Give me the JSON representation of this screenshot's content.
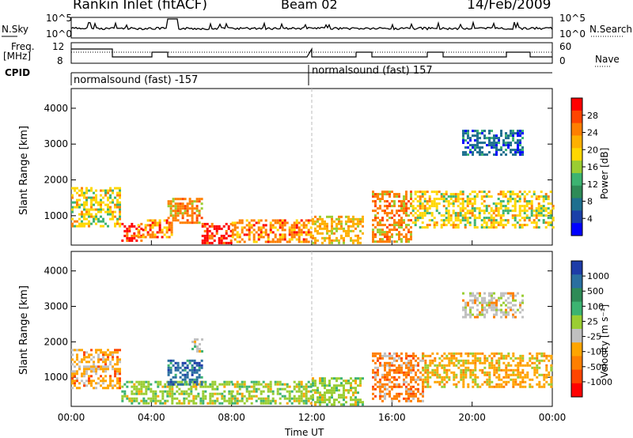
{
  "header": {
    "station": "Rankin Inlet (fitACF)",
    "beam": "Beam 02",
    "date": "14/Feb/2009"
  },
  "left_labels": {
    "nsky": "N.Sky",
    "freq": "Freq.",
    "mhz": "[MHz]",
    "cpid": "CPID"
  },
  "right_labels": {
    "nsearch": "N.Search",
    "nave": "Nave"
  },
  "top_ticks": {
    "noise_left": [
      "10^5",
      "10^0"
    ],
    "noise_right": [
      "10^5",
      "10^0"
    ],
    "freq_left": [
      "12",
      "8"
    ],
    "nave_right": [
      "60",
      "0"
    ]
  },
  "cpid": {
    "left": "normalsound (fast) -157",
    "right": "normalsound (fast) 157"
  },
  "axes": {
    "ylabel": "Slant Range [km]",
    "xlabel": "Time UT",
    "xticks": [
      "00:00",
      "04:00",
      "08:00",
      "12:00",
      "16:00",
      "20:00",
      "00:00"
    ],
    "yticks": [
      "1000",
      "2000",
      "3000",
      "4000"
    ]
  },
  "colorbars": {
    "power": {
      "label": "Power [dB]",
      "ticks": [
        "28",
        "24",
        "20",
        "16",
        "12",
        "8",
        "4"
      ],
      "colors": [
        "#ff0000",
        "#ff4500",
        "#ff7f00",
        "#ffb000",
        "#ffd700",
        "#9acd32",
        "#3cb371",
        "#2e8b57",
        "#1e6f8f",
        "#1a3fa8",
        "#0000ff"
      ]
    },
    "velocity": {
      "label": "Velocity [m s⁻¹]",
      "ticks": [
        "1000",
        "500",
        "100",
        "25",
        "-25",
        "-100",
        "-500",
        "-1000"
      ],
      "colors": [
        "#1e3ca8",
        "#2a6fa0",
        "#2e8b57",
        "#3cb371",
        "#9acd32",
        "#c0c0c0",
        "#ffa500",
        "#ff7f00",
        "#ff4500",
        "#ff0000"
      ]
    }
  },
  "chart_data": [
    {
      "type": "heatmap",
      "title": "Power [dB]",
      "xlabel": "Time UT",
      "ylabel": "Slant Range [km]",
      "xlim": [
        "00:00",
        "24:00"
      ],
      "ylim": [
        180,
        4550
      ],
      "value_range": [
        0,
        30
      ],
      "blobs": [
        {
          "t": [
            0.0,
            2.4
          ],
          "r": [
            700,
            1800
          ],
          "value": 18
        },
        {
          "t": [
            2.5,
            3.5
          ],
          "r": [
            300,
            800
          ],
          "value": 28
        },
        {
          "t": [
            3.3,
            5.0
          ],
          "r": [
            400,
            900
          ],
          "value": 24
        },
        {
          "t": [
            4.8,
            6.5
          ],
          "r": [
            800,
            1500
          ],
          "value": 22
        },
        {
          "t": [
            6.5,
            8.0
          ],
          "r": [
            250,
            800
          ],
          "value": 28
        },
        {
          "t": [
            8.0,
            12.0
          ],
          "r": [
            250,
            900
          ],
          "value": 24
        },
        {
          "t": [
            12.0,
            14.5
          ],
          "r": [
            250,
            1000
          ],
          "value": 20
        },
        {
          "t": [
            15.0,
            17.0
          ],
          "r": [
            300,
            1700
          ],
          "value": 22
        },
        {
          "t": [
            17.0,
            24.0
          ],
          "r": [
            700,
            1700
          ],
          "value": 18
        },
        {
          "t": [
            19.5,
            22.5
          ],
          "r": [
            2700,
            3400
          ],
          "value": 8
        }
      ]
    },
    {
      "type": "heatmap",
      "title": "Velocity [m s⁻¹]",
      "xlabel": "Time UT",
      "ylabel": "Slant Range [km]",
      "xlim": [
        "00:00",
        "24:00"
      ],
      "ylim": [
        180,
        4550
      ],
      "value_range": [
        -1000,
        1000
      ],
      "blobs": [
        {
          "t": [
            0.0,
            2.4
          ],
          "r": [
            700,
            1800
          ],
          "value": -300
        },
        {
          "t": [
            2.5,
            8.0
          ],
          "r": [
            250,
            900
          ],
          "value": 100
        },
        {
          "t": [
            4.8,
            6.5
          ],
          "r": [
            800,
            1500
          ],
          "value": 700
        },
        {
          "t": [
            6.0,
            6.5
          ],
          "r": [
            1700,
            2100
          ],
          "value": 0
        },
        {
          "t": [
            8.0,
            12.0
          ],
          "r": [
            250,
            900
          ],
          "value": 60
        },
        {
          "t": [
            12.0,
            14.5
          ],
          "r": [
            250,
            1000
          ],
          "value": 50
        },
        {
          "t": [
            15.0,
            17.5
          ],
          "r": [
            300,
            1700
          ],
          "value": -400
        },
        {
          "t": [
            17.5,
            24.0
          ],
          "r": [
            700,
            1700
          ],
          "value": -200
        },
        {
          "t": [
            19.5,
            22.5
          ],
          "r": [
            2700,
            3400
          ],
          "value": -150
        }
      ]
    }
  ]
}
